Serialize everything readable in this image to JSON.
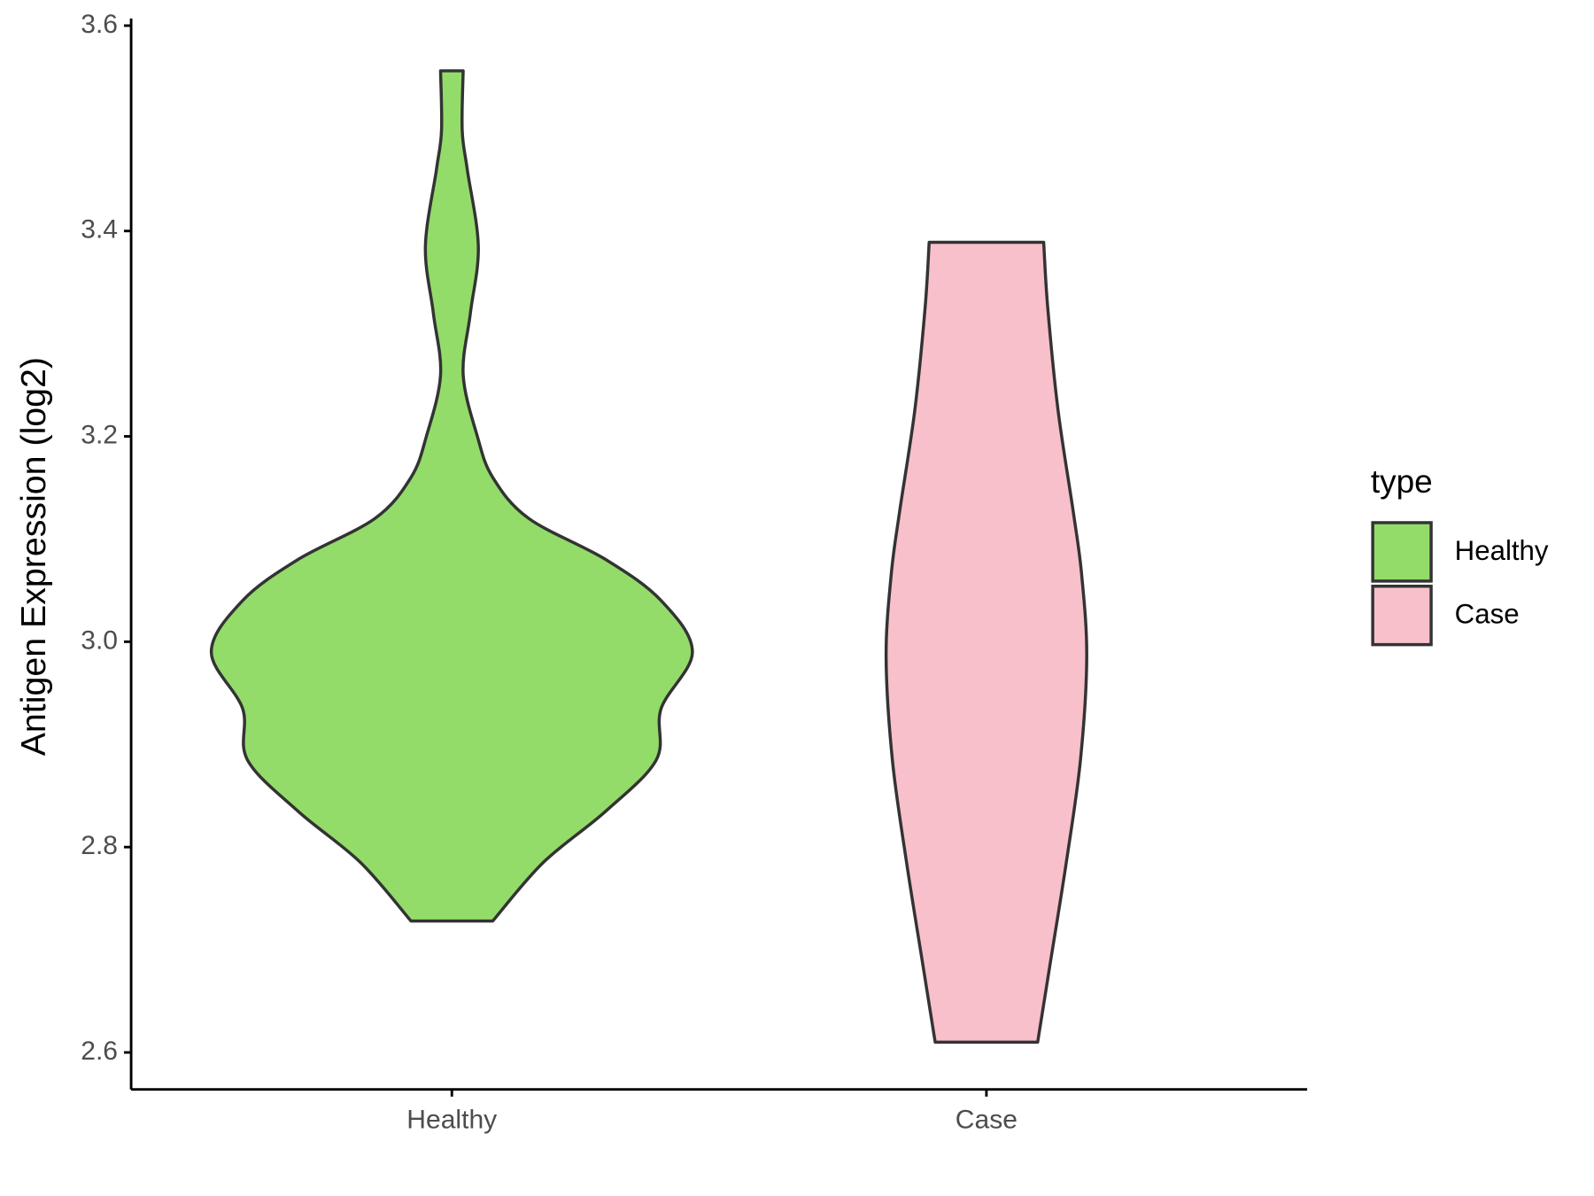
{
  "chart_data": {
    "type": "violin",
    "y_label": "Antigen Expression (log2)",
    "categories": [
      "Healthy",
      "Case"
    ],
    "ylim": [
      2.564,
      3.607
    ],
    "yticks": [
      {
        "value": 2.6,
        "label": "2.6"
      },
      {
        "value": 2.8,
        "label": "2.8"
      },
      {
        "value": 3.0,
        "label": "3.0"
      },
      {
        "value": 3.2,
        "label": "3.2"
      },
      {
        "value": 3.4,
        "label": "3.4"
      },
      {
        "value": 3.6,
        "label": "3.6"
      }
    ],
    "legend_title": "type",
    "legend": "right",
    "series": [
      {
        "name": "Healthy",
        "color": "#93dc6a",
        "y": [
          2.728,
          2.785,
          2.835,
          2.885,
          2.935,
          2.99,
          3.04,
          3.08,
          3.12,
          3.16,
          3.2,
          3.26,
          3.32,
          3.385,
          3.46,
          3.498,
          3.556
        ],
        "widths": [
          0.17,
          0.38,
          0.64,
          0.85,
          0.87,
          1.0,
          0.87,
          0.64,
          0.32,
          0.17,
          0.106,
          0.047,
          0.077,
          0.11,
          0.064,
          0.043,
          0.047
        ]
      },
      {
        "name": "Case",
        "color": "#f8c0cb",
        "y": [
          2.61,
          2.685,
          2.785,
          2.885,
          2.985,
          3.065,
          3.125,
          3.225,
          3.325,
          3.389
        ],
        "widths": [
          0.213,
          0.264,
          0.332,
          0.391,
          0.417,
          0.396,
          0.362,
          0.298,
          0.255,
          0.238
        ]
      }
    ]
  }
}
